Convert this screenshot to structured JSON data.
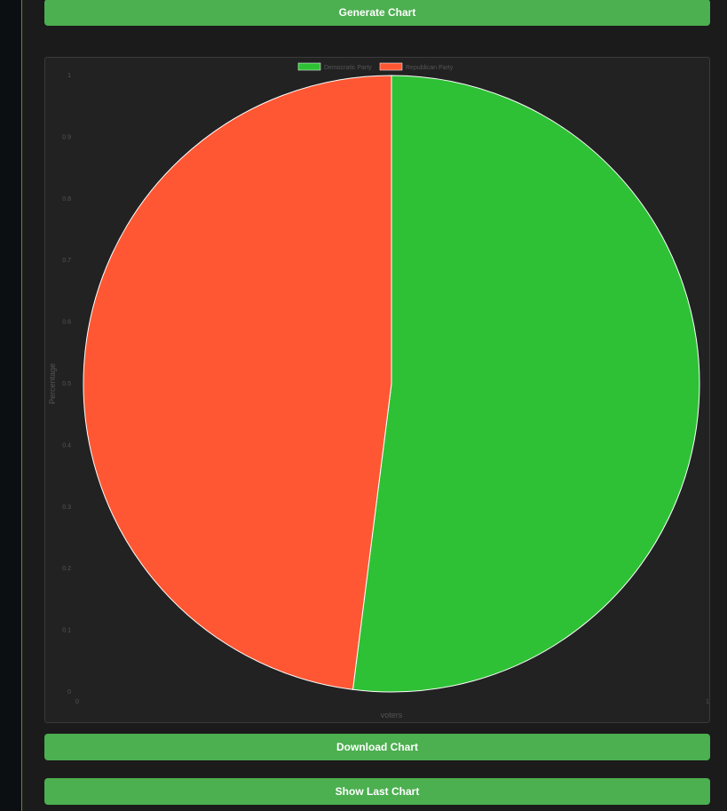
{
  "buttons": {
    "generate": "Generate Chart",
    "download": "Download Chart",
    "show_last": "Show Last Chart"
  },
  "colors": {
    "accent_button": "#4caf50",
    "rail_border": "#5f8d2f"
  },
  "chart_data": {
    "type": "pie",
    "title": "",
    "xlabel": "voters",
    "ylabel": "Percentage",
    "legend_position": "top",
    "grid": false,
    "categories": [
      "Democratic Party",
      "Republican Party"
    ],
    "values": [
      52,
      48
    ],
    "colors": [
      "#2ec135",
      "#ff5733"
    ],
    "x_ticks": [
      "0",
      "1"
    ],
    "y_ticks": [
      "0",
      "0.1",
      "0.2",
      "0.3",
      "0.4",
      "0.5",
      "0.6",
      "0.7",
      "0.8",
      "0.9",
      "1"
    ],
    "xlim": [
      0,
      1
    ],
    "ylim": [
      0,
      1
    ]
  }
}
